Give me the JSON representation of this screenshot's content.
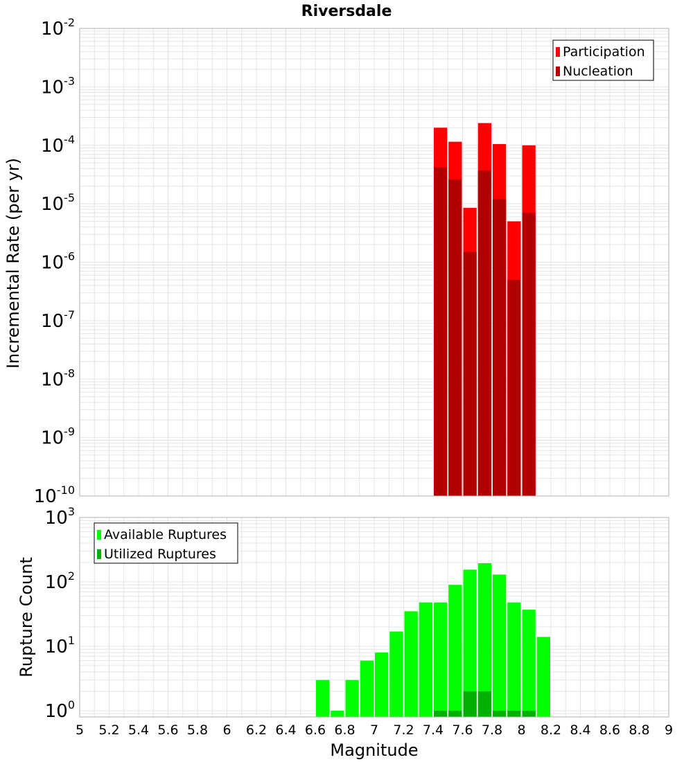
{
  "colors": {
    "participation": "#ff0000",
    "nucleation": "#b20000",
    "available": "#00ff00",
    "utilized": "#00b000",
    "grid": "#e4e4e4",
    "frame": "#b0b0b0"
  },
  "chart_data": [
    {
      "type": "bar",
      "title": "Riversdale",
      "ylabel": "Incremental Rate (per yr)",
      "xlabel": "",
      "yscale": "log",
      "ylim": [
        1e-10,
        0.01
      ],
      "xlim": [
        5,
        9
      ],
      "bin_width": 0.1,
      "legend_position": "top-right",
      "y_ticks": [
        {
          "base": "10",
          "exp": "-10"
        },
        {
          "base": "10",
          "exp": "-9"
        },
        {
          "base": "10",
          "exp": "-8"
        },
        {
          "base": "10",
          "exp": "-7"
        },
        {
          "base": "10",
          "exp": "-6"
        },
        {
          "base": "10",
          "exp": "-5"
        },
        {
          "base": "10",
          "exp": "-4"
        },
        {
          "base": "10",
          "exp": "-3"
        },
        {
          "base": "10",
          "exp": "-2"
        }
      ],
      "series": [
        {
          "name": "Participation",
          "x": [
            7.45,
            7.55,
            7.65,
            7.75,
            7.85,
            7.95,
            8.05
          ],
          "values": [
            0.0002,
            0.000115,
            8.5e-06,
            0.00024,
            0.000105,
            5e-06,
            0.0001
          ]
        },
        {
          "name": "Nucleation",
          "x": [
            7.45,
            7.55,
            7.65,
            7.75,
            7.85,
            7.95,
            8.05
          ],
          "values": [
            4.2e-05,
            2.6e-05,
            1.5e-06,
            3.7e-05,
            1.2e-05,
            5e-07,
            7e-06
          ]
        }
      ]
    },
    {
      "type": "bar",
      "title": "",
      "ylabel": "Rupture Count",
      "xlabel": "Magnitude",
      "yscale": "log",
      "ylim": [
        0.8,
        1000
      ],
      "xlim": [
        5,
        9
      ],
      "bin_width": 0.1,
      "legend_position": "top-left",
      "y_ticks": [
        {
          "base": "10",
          "exp": "0"
        },
        {
          "base": "10",
          "exp": "1"
        },
        {
          "base": "10",
          "exp": "2"
        },
        {
          "base": "10",
          "exp": "3"
        }
      ],
      "x_ticks": [
        "5",
        "5.2",
        "5.4",
        "5.6",
        "5.8",
        "6",
        "6.2",
        "6.4",
        "6.6",
        "6.8",
        "7",
        "7.2",
        "7.4",
        "7.6",
        "7.8",
        "8",
        "8.2",
        "8.4",
        "8.6",
        "8.8",
        "9"
      ],
      "series": [
        {
          "name": "Available Ruptures",
          "x": [
            6.65,
            6.75,
            6.85,
            6.95,
            7.05,
            7.15,
            7.25,
            7.35,
            7.45,
            7.55,
            7.65,
            7.75,
            7.85,
            7.95,
            8.05,
            8.15
          ],
          "values": [
            3,
            1,
            3,
            6,
            8,
            17,
            35,
            48,
            48,
            90,
            155,
            195,
            130,
            48,
            37,
            14
          ]
        },
        {
          "name": "Utilized Ruptures",
          "x": [
            7.45,
            7.55,
            7.65,
            7.75,
            7.85,
            7.95,
            8.05
          ],
          "values": [
            1,
            1,
            2,
            2,
            1,
            1,
            1
          ]
        }
      ]
    }
  ]
}
